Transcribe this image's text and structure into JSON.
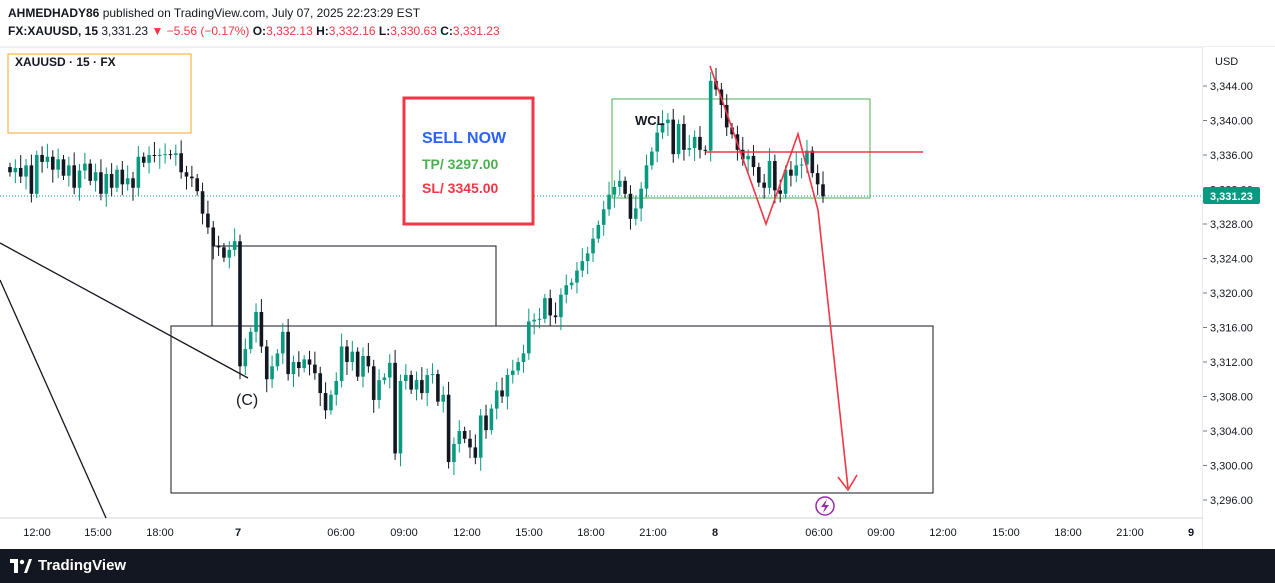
{
  "header": {
    "author": "AHMEDHADY86",
    "published_text": "published on TradingView.com, July 07, 2025 22:23:29 EST",
    "symbol": "FX:XAUUSD, 15",
    "last": "3,331.23",
    "change": "▼ −5.56 (−0.17%)",
    "o_label": "O:",
    "o": "3,332.13",
    "h_label": "H:",
    "h": "3,332.16",
    "l_label": "L:",
    "l": "3,330.63",
    "c_label": "C:",
    "c": "3,331.23"
  },
  "legend_box": {
    "label": "XAUUSD · 15 · FX"
  },
  "signal_box": {
    "line1": "SELL NOW",
    "line2": "TP/ 3297.00",
    "line3": "SL/ 3345.00"
  },
  "annotations": {
    "wcl": "WCL",
    "wave_c": "(C)"
  },
  "price_axis": {
    "currency": "USD",
    "current_price": "3,331.23"
  },
  "footer": {
    "brand": "TradingView"
  },
  "colors": {
    "up": "#089981",
    "down": "#131722",
    "accent_red": "#f23645",
    "price_tag": "#089981",
    "signal_blue": "#2962ff",
    "signal_green": "#4caf50"
  },
  "chart_data": {
    "type": "candlestick",
    "title": "XAUUSD · 15 · FX",
    "ylabel": "USD",
    "ylim": [
      3295,
      3347.5
    ],
    "y_ticks": [
      3296,
      3300,
      3304,
      3308,
      3312,
      3316,
      3320,
      3324,
      3328,
      3332,
      3336,
      3340,
      3344
    ],
    "y_tick_labels": [
      "3,296.00",
      "3,300.00",
      "3,304.00",
      "3,308.00",
      "3,312.00",
      "3,316.00",
      "3,320.00",
      "3,324.00",
      "3,328.00",
      "3,332.00",
      "3,336.00",
      "3,340.00",
      "3,344.00"
    ],
    "x_tick_labels": [
      "12:00",
      "15:00",
      "18:00",
      "7",
      "06:00",
      "09:00",
      "12:00",
      "15:00",
      "18:00",
      "21:00",
      "8",
      "06:00",
      "09:00",
      "12:00",
      "15:00",
      "18:00",
      "21:00",
      "9"
    ],
    "last_price": 3331.23,
    "zones": [
      {
        "name": "upper-supply",
        "top": 3325.5,
        "bottom": 3316.3
      },
      {
        "name": "demand-zone",
        "top": 3316.3,
        "bottom": 3297.5
      },
      {
        "name": "wcl-range",
        "top": 3342.5,
        "bottom": 3331.2
      }
    ],
    "levels": {
      "resistance_line": 3336.2,
      "dotted_last": 3331.23
    },
    "signal": {
      "type": "SELL",
      "tp": 3297.0,
      "sl": 3345.0
    },
    "candles_close": [
      3334.0,
      3334.5,
      3333.5,
      3334.8,
      3331.5,
      3336.0,
      3335.2,
      3335.8,
      3334.3,
      3335.5,
      3333.6,
      3334.8,
      3332.2,
      3334.2,
      3335.0,
      3333.0,
      3334.0,
      3331.5,
      3333.8,
      3332.2,
      3334.3,
      3332.6,
      3333.3,
      3332.2,
      3335.8,
      3335.1,
      3336.0,
      3335.9,
      3336.0,
      3336.1,
      3336.0,
      3336.2,
      3334.0,
      3333.5,
      3333.3,
      3331.8,
      3329.2,
      3327.6,
      3325.4,
      3325.3,
      3324.1,
      3325.0,
      3326.0,
      3311.5,
      3313.5,
      3315.5,
      3317.8,
      3313.8,
      3310.0,
      3311.5,
      3313.0,
      3315.5,
      3310.6,
      3312.0,
      3311.3,
      3312.3,
      3311.7,
      3310.7,
      3308.4,
      3306.4,
      3308.2,
      3309.8,
      3313.8,
      3312.0,
      3313.2,
      3310.3,
      3312.7,
      3311.5,
      3307.6,
      3309.9,
      3310.2,
      3311.9,
      3301.4,
      3309.8,
      3310.5,
      3308.8,
      3309.9,
      3308.4,
      3310.5,
      3310.6,
      3307.4,
      3308.2,
      3300.4,
      3302.5,
      3304.0,
      3303.1,
      3302.1,
      3300.9,
      3305.8,
      3304.1,
      3306.6,
      3308.7,
      3308.0,
      3310.5,
      3311.0,
      3312.0,
      3313.0,
      3316.7,
      3316.9,
      3317.0,
      3319.4,
      3317.4,
      3317.2,
      3319.8,
      3320.9,
      3321.2,
      3322.6,
      3323.7,
      3324.6,
      3326.3,
      3327.9,
      3329.7,
      3331.4,
      3332.3,
      3333.0,
      3331.5,
      3328.6,
      3329.8,
      3332.1,
      3334.8,
      3336.4,
      3338.6,
      3339.7,
      3340.1,
      3336.1,
      3339.6,
      3336.6,
      3336.8,
      3338.1,
      3336.6,
      3336.5,
      3344.6,
      3343.6,
      3341.8,
      3339.2,
      3338.4,
      3336.6,
      3335.5,
      3335.9,
      3334.6,
      3332.8,
      3332.2,
      3335.3,
      3331.9,
      3331.5,
      3334.3,
      3333.6,
      3334.8,
      3334.9,
      3336.5,
      3333.9,
      3332.6,
      3331.2
    ]
  }
}
